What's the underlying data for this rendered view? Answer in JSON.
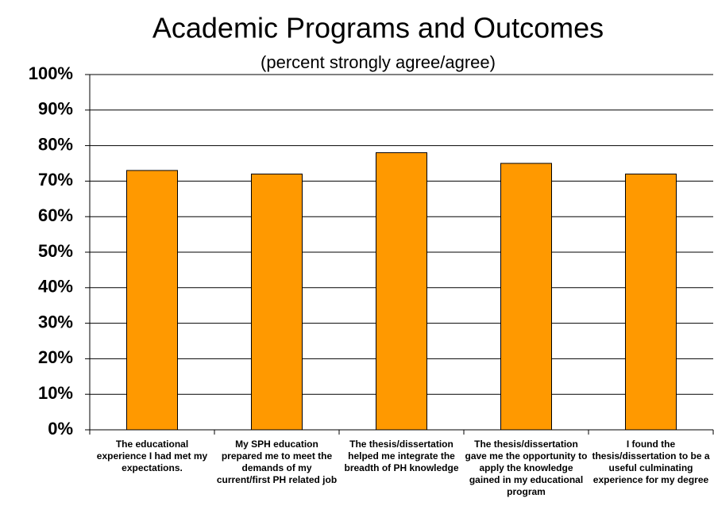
{
  "chart_data": {
    "type": "bar",
    "title": "Academic Programs and Outcomes",
    "subtitle": "(percent strongly agree/agree)",
    "categories": [
      "The educational experience I had met my expectations.",
      "My SPH education prepared me to meet the demands of my current/first PH related job",
      "The thesis/dissertation helped me integrate the breadth of PH knowledge",
      "The thesis/dissertation gave me the opportunity to apply the knowledge gained in my educational program",
      "I found the thesis/dissertation to be a useful culminating experience for my degree"
    ],
    "values": [
      73,
      72,
      78,
      75,
      72
    ],
    "color": "#ff9900",
    "ylim": [
      0,
      100
    ],
    "yticks": [
      {
        "value": 0,
        "label": "0%"
      },
      {
        "value": 10,
        "label": "10%"
      },
      {
        "value": 20,
        "label": "20%"
      },
      {
        "value": 30,
        "label": "30%"
      },
      {
        "value": 40,
        "label": "40%"
      },
      {
        "value": 50,
        "label": "50%"
      },
      {
        "value": 60,
        "label": "60%"
      },
      {
        "value": 70,
        "label": "70%"
      },
      {
        "value": 80,
        "label": "80%"
      },
      {
        "value": 90,
        "label": "90%"
      },
      {
        "value": 100,
        "label": "100%"
      }
    ],
    "grid": true
  }
}
